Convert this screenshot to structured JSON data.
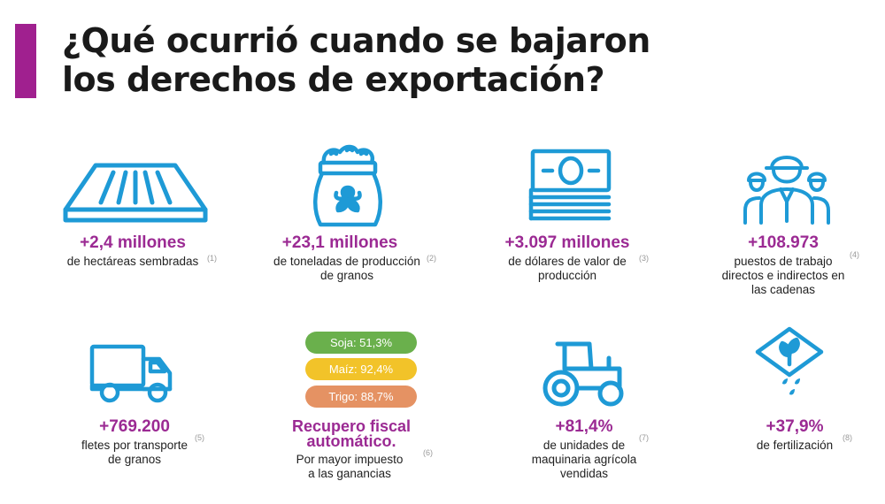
{
  "title": {
    "line1": "¿Qué ocurrió cuando se bajaron",
    "line2": "los derechos de exportación?"
  },
  "colors": {
    "accent": "#a0208f",
    "value_text": "#9b2a93",
    "icon_blue": "#1e9ad6",
    "pill_soja": "#6ab04c",
    "pill_maiz": "#f2c329",
    "pill_trigo": "#e59263"
  },
  "items": [
    {
      "icon": "field-rows-icon",
      "value": "+2,4 millones",
      "desc": [
        "de hectáreas sembradas"
      ],
      "note": "(1)"
    },
    {
      "icon": "grain-sack-icon",
      "value": "+23,1 millones",
      "desc": [
        "de toneladas de producción",
        "de granos"
      ],
      "note": "(2)"
    },
    {
      "icon": "banknotes-icon",
      "value": "+3.097 millones",
      "desc": [
        "de dólares de valor de",
        "producción"
      ],
      "note": "(3)"
    },
    {
      "icon": "workers-group-icon",
      "value": "+108.973",
      "desc": [
        "puestos de trabajo",
        "directos e indirectos en",
        "las cadenas"
      ],
      "note": "(4)"
    },
    {
      "icon": "truck-icon",
      "value": "+769.200",
      "desc": [
        "fletes por transporte",
        "de granos"
      ],
      "note": "(5)"
    },
    {
      "icon": "",
      "value": "",
      "desc": [
        "Por mayor impuesto",
        "a las ganancias"
      ],
      "note": "(6)"
    },
    {
      "icon": "tractor-icon",
      "value": "+81,4%",
      "desc": [
        "de unidades de",
        "maquinaria agrícola",
        "vendidas"
      ],
      "note": "(7)"
    },
    {
      "icon": "fertilizer-icon",
      "value": "+37,9%",
      "desc": [
        "de fertilización"
      ],
      "note": "(8)"
    }
  ],
  "pills": [
    {
      "label": "Soja: 51,3%",
      "color": "#6ab04c"
    },
    {
      "label": "Maíz: 92,4%",
      "color": "#f2c329"
    },
    {
      "label": "Trigo: 88,7%",
      "color": "#e59263"
    }
  ],
  "recupero": {
    "line1": "Recupero fiscal",
    "line2": "automático."
  }
}
